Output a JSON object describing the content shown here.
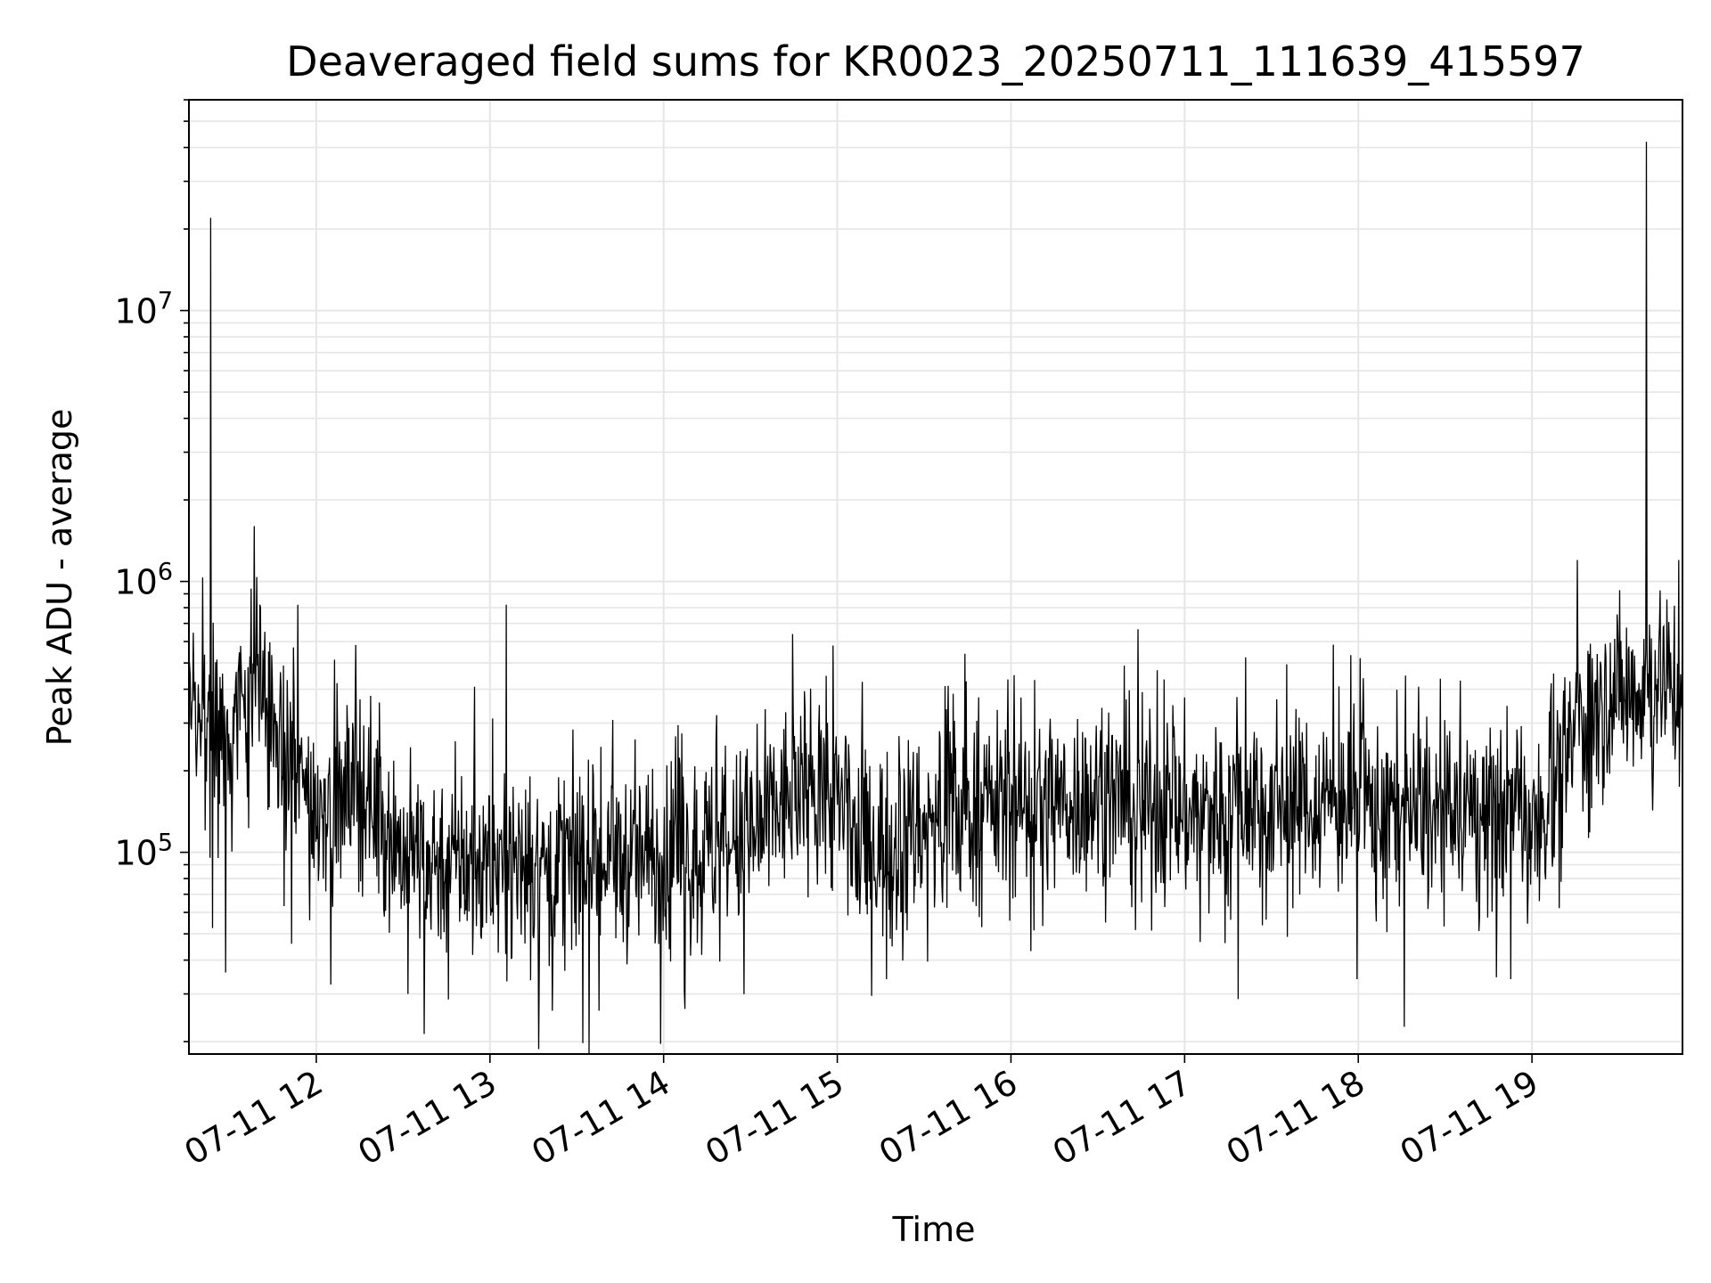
{
  "chart_data": {
    "type": "line",
    "title": "Deaveraged field sums for KR0023_20250711_111639_415597",
    "xlabel": "Time",
    "ylabel": "Peak ADU - average",
    "x_range": [
      "07-11 11:16",
      "07-11 19:52"
    ],
    "x_ticks": [
      "07-11 12",
      "07-11 13",
      "07-11 14",
      "07-11 15",
      "07-11 16",
      "07-11 17",
      "07-11 18",
      "07-11 19"
    ],
    "y_scale": "log",
    "ylim": [
      18000,
      60000000
    ],
    "y_ticks": [
      {
        "value": 10000000,
        "base": "10",
        "exp": "7"
      },
      {
        "value": 1000000,
        "base": "10",
        "exp": "6"
      },
      {
        "value": 100000,
        "base": "10",
        "exp": "5"
      }
    ],
    "grid": true,
    "line_color": "#000000",
    "grid_color": "#e6e6e6",
    "series": [
      {
        "name": "",
        "profile": [
          {
            "t": "07-11 11:16",
            "v": 400000
          },
          {
            "t": "07-11 11:30",
            "v": 300000
          },
          {
            "t": "07-11 11:40",
            "v": 450000
          },
          {
            "t": "07-11 11:50",
            "v": 200000
          },
          {
            "t": "07-11 12:00",
            "v": 150000
          },
          {
            "t": "07-11 12:15",
            "v": 180000
          },
          {
            "t": "07-11 12:30",
            "v": 100000
          },
          {
            "t": "07-11 13:00",
            "v": 90000
          },
          {
            "t": "07-11 13:30",
            "v": 90000
          },
          {
            "t": "07-11 14:00",
            "v": 95000
          },
          {
            "t": "07-11 14:30",
            "v": 110000
          },
          {
            "t": "07-11 14:50",
            "v": 190000
          },
          {
            "t": "07-11 15:00",
            "v": 150000
          },
          {
            "t": "07-11 15:10",
            "v": 100000
          },
          {
            "t": "07-11 15:30",
            "v": 130000
          },
          {
            "t": "07-11 16:00",
            "v": 150000
          },
          {
            "t": "07-11 16:30",
            "v": 160000
          },
          {
            "t": "07-11 17:00",
            "v": 140000
          },
          {
            "t": "07-11 17:30",
            "v": 160000
          },
          {
            "t": "07-11 18:00",
            "v": 150000
          },
          {
            "t": "07-11 18:30",
            "v": 130000
          },
          {
            "t": "07-11 19:00",
            "v": 150000
          },
          {
            "t": "07-11 19:12",
            "v": 200000
          },
          {
            "t": "07-11 19:15",
            "v": 300000
          },
          {
            "t": "07-11 19:30",
            "v": 380000
          },
          {
            "t": "07-11 19:45",
            "v": 450000
          },
          {
            "t": "07-11 19:52",
            "v": 400000
          }
        ],
        "spikes": [
          {
            "t": "07-11 11:24",
            "v": 22000000
          },
          {
            "t": "07-11 19:40",
            "v": 42000000
          },
          {
            "t": "07-11 11:39",
            "v": 1600000
          },
          {
            "t": "07-11 13:06",
            "v": 820000
          },
          {
            "t": "07-11 11:54",
            "v": 820000
          },
          {
            "t": "07-11 14:59",
            "v": 580000
          },
          {
            "t": "07-11 19:16",
            "v": 1200000
          },
          {
            "t": "07-11 19:51",
            "v": 1200000
          }
        ],
        "dips": [
          {
            "t": "07-11 11:29",
            "v": 36000
          },
          {
            "t": "07-11 12:32",
            "v": 30000
          },
          {
            "t": "07-11 13:22",
            "v": 26000
          },
          {
            "t": "07-11 13:38",
            "v": 26000
          },
          {
            "t": "07-11 18:00",
            "v": 34000
          },
          {
            "t": "07-11 18:53",
            "v": 34000
          }
        ]
      }
    ]
  }
}
